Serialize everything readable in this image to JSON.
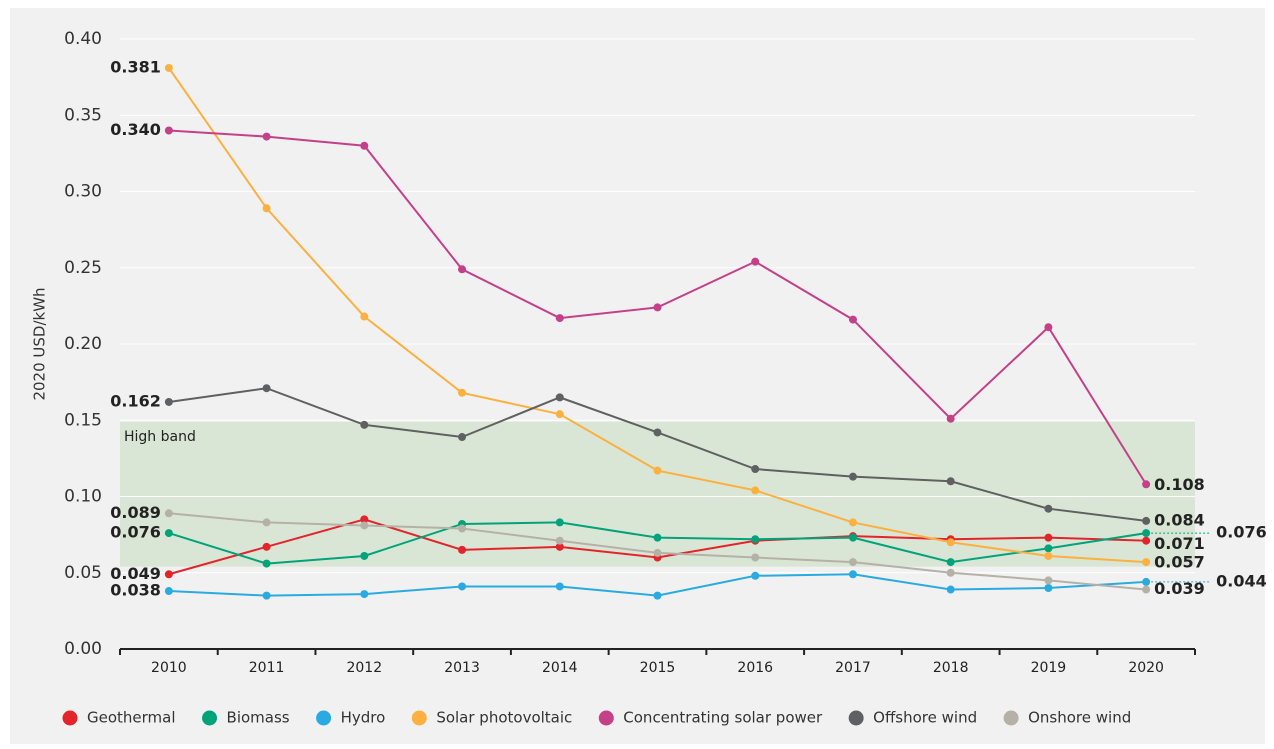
{
  "chart_data": {
    "type": "line",
    "ylabel": "2020 USD/kWh",
    "categories": [
      "2010",
      "2011",
      "2012",
      "2013",
      "2014",
      "2015",
      "2016",
      "2017",
      "2018",
      "2019",
      "2020"
    ],
    "ylim": [
      0,
      0.4
    ],
    "yticks": [
      {
        "value": 0,
        "label": "0.00"
      },
      0.05,
      {
        "value": 0.1,
        "label": "0.10"
      },
      0.15,
      {
        "value": 0.2,
        "label": "0.20"
      },
      0.25,
      {
        "value": 0.3,
        "label": "0.30"
      },
      0.35,
      {
        "value": 0.4,
        "label": "0.40"
      }
    ],
    "grid": true,
    "band": {
      "label": "High band",
      "range": [
        0.054,
        0.149
      ],
      "color": "#d6e4d0"
    },
    "legend": "bottom",
    "series": [
      {
        "name": "Geothermal",
        "color": "#e3242b",
        "values": [
          0.049,
          0.067,
          0.085,
          0.065,
          0.067,
          0.06,
          0.071,
          0.074,
          0.072,
          0.073,
          0.071
        ],
        "value_labels": [
          "0.049",
          null,
          null,
          null,
          null,
          null,
          null,
          null,
          null,
          null,
          "0.071"
        ]
      },
      {
        "name": "Biomass",
        "color": "#00a37a",
        "values": [
          0.076,
          0.056,
          0.061,
          0.082,
          0.083,
          0.073,
          0.072,
          0.073,
          0.057,
          0.066,
          0.076
        ],
        "value_labels": [
          "0.076",
          null,
          null,
          null,
          null,
          null,
          null,
          null,
          null,
          null,
          "0.076"
        ]
      },
      {
        "name": "Hydro",
        "color": "#29abe2",
        "values": [
          0.038,
          0.035,
          0.036,
          0.041,
          0.041,
          0.035,
          0.048,
          0.049,
          0.039,
          0.04,
          0.044
        ],
        "value_labels": [
          "0.038",
          null,
          null,
          null,
          null,
          null,
          null,
          null,
          null,
          null,
          "0.044"
        ]
      },
      {
        "name": "Solar photovoltaic",
        "color": "#fbb040",
        "values": [
          0.381,
          0.289,
          0.218,
          0.168,
          0.154,
          0.117,
          0.104,
          0.083,
          0.07,
          0.061,
          0.057
        ],
        "value_labels": [
          "0.381",
          null,
          null,
          null,
          null,
          null,
          null,
          null,
          null,
          null,
          "0.057"
        ]
      },
      {
        "name": "Concentrating solar power",
        "color": "#c4418a",
        "values": [
          0.34,
          0.336,
          0.33,
          0.249,
          0.217,
          0.224,
          0.254,
          0.216,
          0.151,
          0.211,
          0.108
        ],
        "value_labels": [
          "0.340",
          null,
          null,
          null,
          null,
          null,
          null,
          null,
          null,
          null,
          "0.108"
        ]
      },
      {
        "name": "Offshore wind",
        "color": "#5f6062",
        "values": [
          0.162,
          0.171,
          0.147,
          0.139,
          0.165,
          0.142,
          0.118,
          0.113,
          0.11,
          0.092,
          0.084
        ],
        "value_labels": [
          "0.162",
          null,
          null,
          null,
          null,
          null,
          null,
          null,
          null,
          null,
          "0.084"
        ]
      },
      {
        "name": "Onshore wind",
        "color": "#b5b1a6",
        "values": [
          0.089,
          0.083,
          0.081,
          0.079,
          0.071,
          0.063,
          0.06,
          0.057,
          0.05,
          0.045,
          0.039
        ],
        "value_labels": [
          "0.089",
          null,
          null,
          null,
          null,
          null,
          null,
          null,
          null,
          null,
          "0.039"
        ]
      }
    ]
  }
}
